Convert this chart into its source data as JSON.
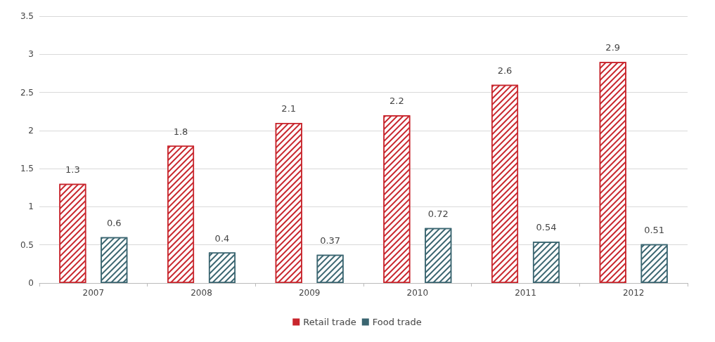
{
  "chart_data": {
    "type": "bar",
    "categories": [
      "2007",
      "2008",
      "2009",
      "2010",
      "2011",
      "2012"
    ],
    "series": [
      {
        "name": "Retail trade",
        "color": "#c8252c",
        "values": [
          1.3,
          1.8,
          2.1,
          2.2,
          2.6,
          2.9
        ]
      },
      {
        "name": "Food trade",
        "color": "#3a6570",
        "values": [
          0.6,
          0.4,
          0.37,
          0.72,
          0.54,
          0.51
        ]
      }
    ],
    "ylim": [
      0,
      3.5
    ],
    "yticks": [
      0,
      0.5,
      1,
      1.5,
      2,
      2.5,
      3,
      3.5
    ],
    "grid": "y",
    "legend": "bottom",
    "data_labels": true
  }
}
